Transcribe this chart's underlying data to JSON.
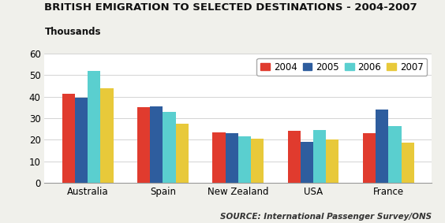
{
  "title": "BRITISH EMIGRATION TO SELECTED DESTINATIONS - 2004-2007",
  "ylabel": "Thousands",
  "source": "SOURCE: International Passenger Survey/ONS",
  "categories": [
    "Australia",
    "Spain",
    "New Zealand",
    "USA",
    "France"
  ],
  "years": [
    "2004",
    "2005",
    "2006",
    "2007"
  ],
  "values": {
    "2004": [
      41.5,
      35.0,
      23.5,
      24.0,
      23.0
    ],
    "2005": [
      39.5,
      35.5,
      23.0,
      19.0,
      34.0
    ],
    "2006": [
      52.0,
      33.0,
      21.5,
      24.5,
      26.5
    ],
    "2007": [
      44.0,
      27.5,
      20.5,
      20.0,
      18.5
    ]
  },
  "colors": {
    "2004": "#e03b2e",
    "2005": "#2e5d9e",
    "2006": "#5acfcf",
    "2007": "#e8c93a"
  },
  "ylim": [
    0,
    60
  ],
  "yticks": [
    0,
    10,
    20,
    30,
    40,
    50,
    60
  ],
  "background_color": "#f0f0eb",
  "plot_bg_color": "#ffffff",
  "title_fontsize": 9.5,
  "ylabel_fontsize": 8.5,
  "tick_fontsize": 8.5,
  "legend_fontsize": 8.5,
  "source_fontsize": 7.5,
  "bar_width": 0.17
}
